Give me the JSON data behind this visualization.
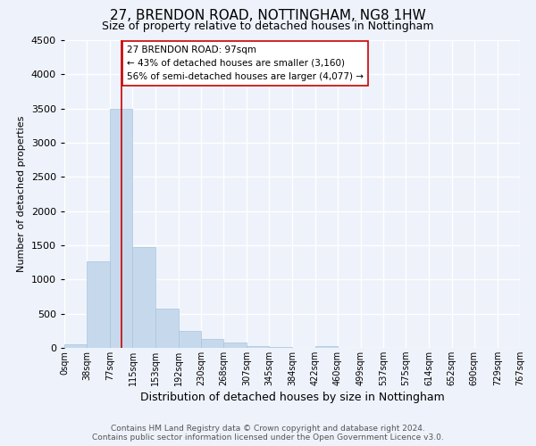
{
  "title": "27, BRENDON ROAD, NOTTINGHAM, NG8 1HW",
  "subtitle": "Size of property relative to detached houses in Nottingham",
  "xlabel": "Distribution of detached houses by size in Nottingham",
  "ylabel": "Number of detached properties",
  "footer_line1": "Contains HM Land Registry data © Crown copyright and database right 2024.",
  "footer_line2": "Contains public sector information licensed under the Open Government Licence v3.0.",
  "bar_edges": [
    0,
    38,
    77,
    115,
    153,
    192,
    230,
    268,
    307,
    345,
    384,
    422,
    460,
    499,
    537,
    575,
    614,
    652,
    690,
    729,
    767
  ],
  "bar_heights": [
    50,
    1270,
    3500,
    1480,
    570,
    245,
    135,
    75,
    30,
    10,
    5,
    25,
    5,
    0,
    0,
    0,
    0,
    0,
    0,
    0
  ],
  "bar_color": "#c6d9ec",
  "bar_edgecolor": "#a8c4db",
  "property_size": 97,
  "property_line_color": "#cc0000",
  "annotation_text": "27 BRENDON ROAD: 97sqm\n← 43% of detached houses are smaller (3,160)\n56% of semi-detached houses are larger (4,077) →",
  "annotation_box_color": "#ffffff",
  "annotation_box_edgecolor": "#cc0000",
  "ylim": [
    0,
    4500
  ],
  "tick_labels": [
    "0sqm",
    "38sqm",
    "77sqm",
    "115sqm",
    "153sqm",
    "192sqm",
    "230sqm",
    "268sqm",
    "307sqm",
    "345sqm",
    "384sqm",
    "422sqm",
    "460sqm",
    "499sqm",
    "537sqm",
    "575sqm",
    "614sqm",
    "652sqm",
    "690sqm",
    "729sqm",
    "767sqm"
  ],
  "background_color": "#eef2fb",
  "grid_color": "#ffffff",
  "title_fontsize": 11,
  "subtitle_fontsize": 9,
  "xlabel_fontsize": 9,
  "ylabel_fontsize": 8,
  "tick_fontsize": 7,
  "footer_fontsize": 6.5,
  "annotation_fontsize": 7.5
}
